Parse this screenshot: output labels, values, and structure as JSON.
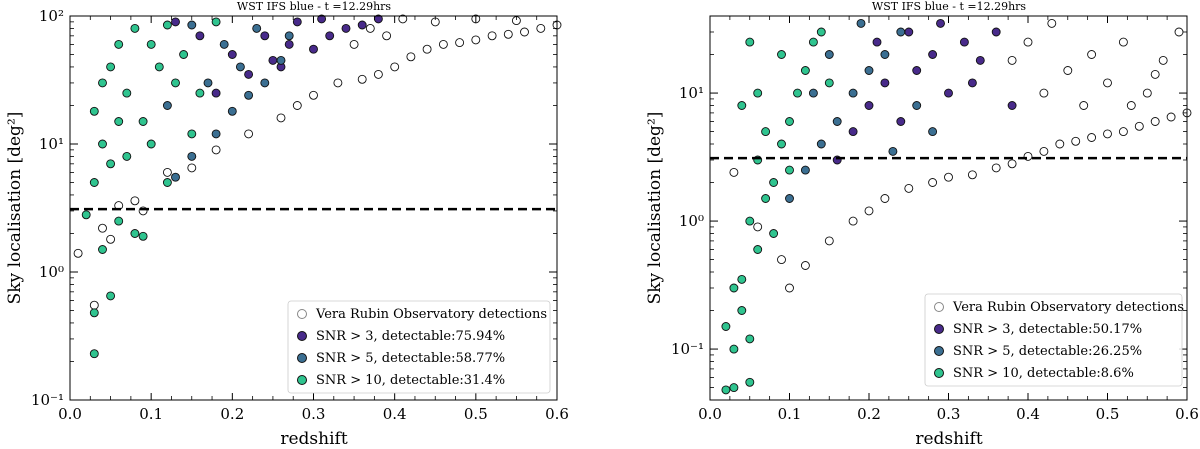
{
  "colors": {
    "rubin": "#ffffff",
    "snr3": "#482a8a",
    "snr5": "#3b6f92",
    "snr10": "#2fc48f",
    "edge": "#111111",
    "threshold": "#000000"
  },
  "chart_data": [
    {
      "type": "scatter",
      "title": "WST IFS blue - t =12.29hrs",
      "xlabel": "redshift",
      "ylabel": "Sky localisation [deg²]",
      "xlim": [
        0.0,
        0.6
      ],
      "ylim": [
        0.1,
        100
      ],
      "yscale": "log",
      "xticks": [
        "0.0",
        "0.1",
        "0.2",
        "0.3",
        "0.4",
        "0.5",
        "0.6"
      ],
      "yticks": [
        "10⁻¹",
        "10⁰",
        "10¹",
        "10²"
      ],
      "threshold_y": 3.1,
      "legend_position": "lower-right",
      "legend": [
        "Vera Rubin Observatory detections",
        "SNR > 3, detectable:75.94%",
        "SNR > 5, detectable:58.77%",
        "SNR > 10, detectable:31.4%"
      ],
      "series": [
        {
          "name": "Vera Rubin Observatory detections",
          "key": "rubin",
          "points": [
            [
              0.01,
              1.4
            ],
            [
              0.03,
              0.55
            ],
            [
              0.04,
              2.2
            ],
            [
              0.05,
              1.8
            ],
            [
              0.06,
              3.3
            ],
            [
              0.08,
              3.6
            ],
            [
              0.09,
              3.0
            ],
            [
              0.12,
              6.0
            ],
            [
              0.15,
              6.5
            ],
            [
              0.18,
              9.0
            ],
            [
              0.22,
              12.0
            ],
            [
              0.26,
              16.0
            ],
            [
              0.28,
              20.0
            ],
            [
              0.3,
              24.0
            ],
            [
              0.33,
              30.0
            ],
            [
              0.36,
              32.0
            ],
            [
              0.38,
              35.0
            ],
            [
              0.4,
              40.0
            ],
            [
              0.42,
              48.0
            ],
            [
              0.44,
              55.0
            ],
            [
              0.46,
              60.0
            ],
            [
              0.48,
              62.0
            ],
            [
              0.5,
              65.0
            ],
            [
              0.52,
              70.0
            ],
            [
              0.54,
              72.0
            ],
            [
              0.56,
              75.0
            ],
            [
              0.58,
              80.0
            ],
            [
              0.6,
              85.0
            ],
            [
              0.37,
              80.0
            ],
            [
              0.41,
              95.0
            ],
            [
              0.45,
              90.0
            ],
            [
              0.5,
              95.0
            ],
            [
              0.55,
              92.0
            ],
            [
              0.35,
              60.0
            ],
            [
              0.39,
              70.0
            ]
          ]
        },
        {
          "name": "SNR > 3",
          "key": "snr3",
          "points": [
            [
              0.18,
              25.0
            ],
            [
              0.22,
              35.0
            ],
            [
              0.25,
              45.0
            ],
            [
              0.27,
              60.0
            ],
            [
              0.3,
              55.0
            ],
            [
              0.32,
              70.0
            ],
            [
              0.34,
              80.0
            ],
            [
              0.36,
              85.0
            ],
            [
              0.38,
              95.0
            ],
            [
              0.24,
              70.0
            ],
            [
              0.28,
              90.0
            ],
            [
              0.31,
              95.0
            ],
            [
              0.26,
              40.0
            ],
            [
              0.2,
              50.0
            ],
            [
              0.16,
              70.0
            ],
            [
              0.13,
              90.0
            ]
          ]
        },
        {
          "name": "SNR > 5",
          "key": "snr5",
          "points": [
            [
              0.13,
              5.5
            ],
            [
              0.15,
              8.0
            ],
            [
              0.18,
              12.0
            ],
            [
              0.2,
              18.0
            ],
            [
              0.22,
              24.0
            ],
            [
              0.24,
              30.0
            ],
            [
              0.26,
              45.0
            ],
            [
              0.12,
              20.0
            ],
            [
              0.17,
              30.0
            ],
            [
              0.21,
              40.0
            ],
            [
              0.19,
              60.0
            ],
            [
              0.23,
              80.0
            ],
            [
              0.15,
              85.0
            ],
            [
              0.27,
              70.0
            ]
          ]
        },
        {
          "name": "SNR > 10",
          "key": "snr10",
          "points": [
            [
              0.03,
              0.23
            ],
            [
              0.03,
              0.48
            ],
            [
              0.05,
              0.65
            ],
            [
              0.04,
              1.5
            ],
            [
              0.06,
              2.5
            ],
            [
              0.08,
              2.0
            ],
            [
              0.09,
              1.9
            ],
            [
              0.02,
              2.8
            ],
            [
              0.03,
              5.0
            ],
            [
              0.05,
              7.0
            ],
            [
              0.04,
              10.0
            ],
            [
              0.06,
              15.0
            ],
            [
              0.07,
              25.0
            ],
            [
              0.05,
              40.0
            ],
            [
              0.06,
              60.0
            ],
            [
              0.08,
              80.0
            ],
            [
              0.1,
              60.0
            ],
            [
              0.12,
              85.0
            ],
            [
              0.11,
              40.0
            ],
            [
              0.13,
              30.0
            ],
            [
              0.14,
              50.0
            ],
            [
              0.09,
              15.0
            ],
            [
              0.1,
              10.0
            ],
            [
              0.12,
              5.0
            ],
            [
              0.15,
              12.0
            ],
            [
              0.16,
              25.0
            ],
            [
              0.18,
              90.0
            ],
            [
              0.04,
              30.0
            ],
            [
              0.03,
              18.0
            ],
            [
              0.07,
              8.0
            ]
          ]
        }
      ]
    },
    {
      "type": "scatter",
      "title": "WST IFS blue - t =12.29hrs",
      "xlabel": "redshift",
      "ylabel": "Sky localisation [deg²]",
      "xlim": [
        0.0,
        0.6
      ],
      "ylim": [
        0.04,
        40
      ],
      "yscale": "log",
      "xticks": [
        "0.0",
        "0.1",
        "0.2",
        "0.3",
        "0.4",
        "0.5",
        "0.6"
      ],
      "yticks": [
        "10⁻¹",
        "10⁰",
        "10¹"
      ],
      "threshold_y": 3.1,
      "legend_position": "lower-right",
      "legend": [
        "Vera Rubin Observatory detections",
        "SNR > 3, detectable:50.17%",
        "SNR > 5, detectable:26.25%",
        "SNR > 10, detectable:8.6%"
      ],
      "series": [
        {
          "name": "Vera Rubin Observatory detections",
          "key": "rubin",
          "points": [
            [
              0.03,
              2.4
            ],
            [
              0.06,
              0.9
            ],
            [
              0.09,
              0.5
            ],
            [
              0.1,
              0.3
            ],
            [
              0.12,
              0.45
            ],
            [
              0.15,
              0.7
            ],
            [
              0.18,
              1.0
            ],
            [
              0.2,
              1.2
            ],
            [
              0.22,
              1.5
            ],
            [
              0.25,
              1.8
            ],
            [
              0.28,
              2.0
            ],
            [
              0.3,
              2.2
            ],
            [
              0.33,
              2.3
            ],
            [
              0.36,
              2.6
            ],
            [
              0.38,
              2.8
            ],
            [
              0.4,
              3.2
            ],
            [
              0.42,
              3.5
            ],
            [
              0.44,
              4.0
            ],
            [
              0.46,
              4.2
            ],
            [
              0.48,
              4.5
            ],
            [
              0.5,
              4.8
            ],
            [
              0.52,
              5.0
            ],
            [
              0.54,
              5.5
            ],
            [
              0.56,
              6.0
            ],
            [
              0.58,
              6.5
            ],
            [
              0.6,
              7.0
            ],
            [
              0.42,
              10.0
            ],
            [
              0.45,
              15.0
            ],
            [
              0.48,
              20.0
            ],
            [
              0.5,
              12.0
            ],
            [
              0.52,
              25.0
            ],
            [
              0.55,
              10.0
            ],
            [
              0.57,
              18.0
            ],
            [
              0.59,
              30.0
            ],
            [
              0.4,
              25.0
            ],
            [
              0.43,
              35.0
            ],
            [
              0.47,
              8.0
            ],
            [
              0.53,
              8.0
            ],
            [
              0.56,
              14.0
            ],
            [
              0.38,
              18.0
            ]
          ]
        },
        {
          "name": "SNR > 3",
          "key": "snr3",
          "points": [
            [
              0.16,
              3.0
            ],
            [
              0.18,
              5.0
            ],
            [
              0.2,
              8.0
            ],
            [
              0.22,
              12.0
            ],
            [
              0.24,
              6.0
            ],
            [
              0.26,
              15.0
            ],
            [
              0.28,
              20.0
            ],
            [
              0.3,
              10.0
            ],
            [
              0.32,
              25.0
            ],
            [
              0.34,
              18.0
            ],
            [
              0.36,
              30.0
            ],
            [
              0.38,
              8.0
            ],
            [
              0.25,
              30.0
            ],
            [
              0.29,
              35.0
            ],
            [
              0.33,
              12.0
            ],
            [
              0.21,
              25.0
            ]
          ]
        },
        {
          "name": "SNR > 5",
          "key": "snr5",
          "points": [
            [
              0.1,
              1.5
            ],
            [
              0.12,
              2.5
            ],
            [
              0.14,
              4.0
            ],
            [
              0.16,
              6.0
            ],
            [
              0.18,
              10.0
            ],
            [
              0.2,
              15.0
            ],
            [
              0.22,
              20.0
            ],
            [
              0.24,
              30.0
            ],
            [
              0.26,
              8.0
            ],
            [
              0.28,
              5.0
            ],
            [
              0.15,
              20.0
            ],
            [
              0.19,
              35.0
            ],
            [
              0.23,
              3.5
            ],
            [
              0.13,
              10.0
            ]
          ]
        },
        {
          "name": "SNR > 10",
          "key": "snr10",
          "points": [
            [
              0.02,
              0.048
            ],
            [
              0.03,
              0.05
            ],
            [
              0.03,
              0.1
            ],
            [
              0.04,
              0.2
            ],
            [
              0.05,
              0.055
            ],
            [
              0.05,
              0.12
            ],
            [
              0.04,
              0.35
            ],
            [
              0.06,
              0.6
            ],
            [
              0.05,
              1.0
            ],
            [
              0.07,
              1.5
            ],
            [
              0.06,
              3.0
            ],
            [
              0.04,
              8.0
            ],
            [
              0.05,
              25.0
            ],
            [
              0.06,
              10.0
            ],
            [
              0.07,
              5.0
            ],
            [
              0.08,
              2.0
            ],
            [
              0.09,
              4.0
            ],
            [
              0.1,
              6.0
            ],
            [
              0.11,
              10.0
            ],
            [
              0.12,
              15.0
            ],
            [
              0.13,
              25.0
            ],
            [
              0.14,
              30.0
            ],
            [
              0.1,
              2.5
            ],
            [
              0.08,
              0.8
            ],
            [
              0.09,
              20.0
            ],
            [
              0.15,
              12.0
            ],
            [
              0.03,
              0.3
            ],
            [
              0.02,
              0.15
            ]
          ]
        }
      ]
    }
  ]
}
